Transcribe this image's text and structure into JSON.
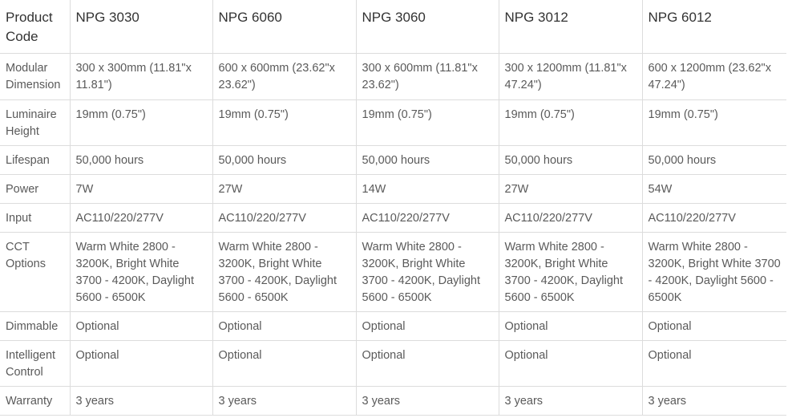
{
  "table": {
    "header": {
      "label": "Product Code",
      "products": [
        "NPG 3030",
        "NPG 6060",
        "NPG 3060",
        "NPG 3012",
        "NPG 6012"
      ]
    },
    "rows": [
      {
        "label": "Modular Dimension",
        "values": [
          "300 x 300mm (11.81\"x 11.81\")",
          "600 x 600mm (23.62\"x 23.62\")",
          "300 x 600mm (11.81\"x 23.62\")",
          "300 x 1200mm (11.81\"x 47.24\")",
          "600 x 1200mm (23.62\"x 47.24\")"
        ]
      },
      {
        "label": "Luminaire Height",
        "values": [
          "19mm (0.75\")",
          "19mm (0.75\")",
          "19mm (0.75\")",
          "19mm (0.75\")",
          "19mm (0.75\")"
        ]
      },
      {
        "label": "Lifespan",
        "values": [
          "50,000 hours",
          "50,000 hours",
          "50,000 hours",
          "50,000 hours",
          "50,000 hours"
        ]
      },
      {
        "label": "Power",
        "values": [
          "7W",
          "27W",
          "14W",
          "27W",
          "54W"
        ]
      },
      {
        "label": "Input",
        "values": [
          "AC110/220/277V",
          "AC110/220/277V",
          "AC110/220/277V",
          "AC110/220/277V",
          "AC110/220/277V"
        ]
      },
      {
        "label": "CCT Options",
        "values": [
          "Warm White 2800 - 3200K, Bright White 3700 - 4200K, Daylight 5600 - 6500K",
          "Warm White 2800 - 3200K, Bright White 3700 - 4200K, Daylight 5600 - 6500K",
          "Warm White 2800 - 3200K, Bright White 3700 - 4200K, Daylight 5600 - 6500K",
          "Warm White 2800 - 3200K, Bright White 3700 - 4200K, Daylight 5600 - 6500K",
          "Warm White 2800 - 3200K, Bright White 3700 - 4200K, Daylight 5600 - 6500K"
        ]
      },
      {
        "label": "Dimmable",
        "values": [
          "Optional",
          "Optional",
          "Optional",
          "Optional",
          "Optional"
        ]
      },
      {
        "label": "Intelligent Control",
        "values": [
          "Optional",
          "Optional",
          "Optional",
          "Optional",
          "Optional"
        ]
      },
      {
        "label": "Warranty",
        "values": [
          "3 years",
          "3 years",
          "3 years",
          "3 years",
          "3 years"
        ]
      }
    ]
  }
}
